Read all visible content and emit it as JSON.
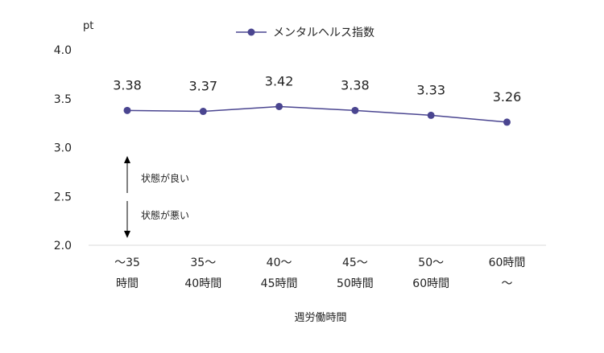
{
  "chart_data": {
    "type": "line",
    "title": "",
    "xlabel": "週労働時間",
    "ylabel": "pt",
    "ylim": [
      2.0,
      4.0
    ],
    "yticks": [
      "4.0",
      "3.5",
      "3.0",
      "2.5",
      "2.0"
    ],
    "grid": false,
    "legend": "top-center",
    "categories": [
      [
        "〜35",
        "時間"
      ],
      [
        "35〜",
        "40時間"
      ],
      [
        "40〜",
        "45時間"
      ],
      [
        "45〜",
        "50時間"
      ],
      [
        "50〜",
        "60時間"
      ],
      [
        "60時間",
        "〜"
      ]
    ],
    "series": [
      {
        "name": "メンタルヘルス指数",
        "values": [
          3.38,
          3.37,
          3.42,
          3.38,
          3.33,
          3.26
        ],
        "labels": [
          "3.38",
          "3.37",
          "3.42",
          "3.38",
          "3.33",
          "3.26"
        ],
        "color": "#4a4590"
      }
    ],
    "annotations": {
      "up": "状態が良い",
      "down": "状態が悪い"
    }
  }
}
